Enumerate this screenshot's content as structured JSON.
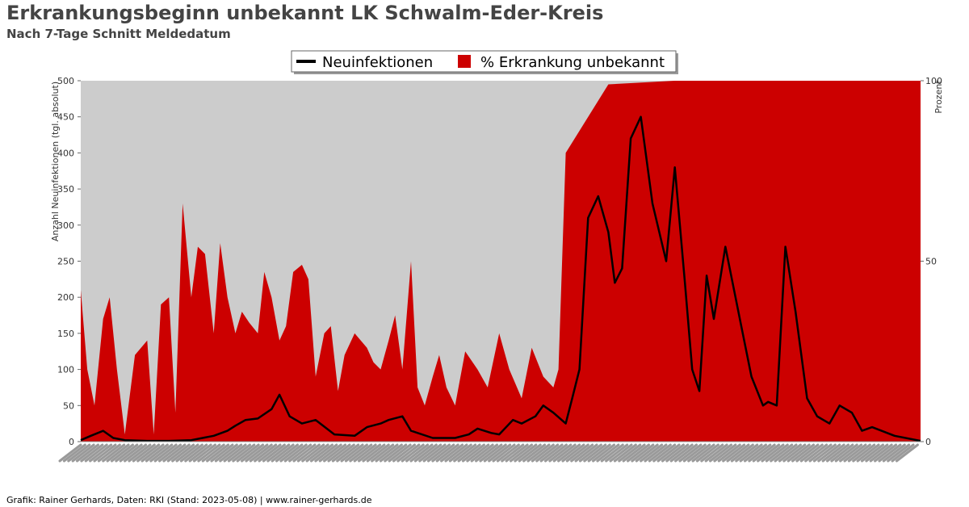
{
  "header": {
    "title": "Erkrankungsbeginn unbekannt LK Schwalm-Eder-Kreis",
    "subtitle": "Nach 7-Tage Schnitt Meldedatum"
  },
  "footer": {
    "credit": "Grafik: Rainer Gerhards, Daten: RKI (Stand: 2023-05-08) | www.rainer-gerhards.de"
  },
  "colors": {
    "plot_background": "#cccccc",
    "area": "#cc0000",
    "line": "#000000"
  },
  "chart_data": {
    "type": "line",
    "x_range": [
      "2020-03-01",
      "2023-05-07"
    ],
    "legend": {
      "placement": "top-center",
      "items": [
        "Neuinfektionen",
        "% Erkrankung unbekannt"
      ]
    },
    "left_axis": {
      "label": "Anzahl Neuinfektionen (tgl. absolut)",
      "ylim": [
        0,
        500
      ],
      "ticks": [
        0,
        50,
        100,
        150,
        200,
        250,
        300,
        350,
        400,
        450,
        500
      ]
    },
    "right_axis": {
      "label": "Prozent",
      "ylim": [
        0,
        100
      ],
      "ticks": [
        0,
        50,
        100
      ]
    },
    "series": [
      {
        "name": "Neuinfektionen",
        "kind": "line",
        "axis": "left",
        "x": [
          "2020-03-01",
          "2020-03-15",
          "2020-04-01",
          "2020-04-15",
          "2020-05-01",
          "2020-06-01",
          "2020-07-01",
          "2020-08-01",
          "2020-09-01",
          "2020-09-20",
          "2020-10-01",
          "2020-10-15",
          "2020-11-01",
          "2020-11-20",
          "2020-12-01",
          "2020-12-15",
          "2021-01-01",
          "2021-01-20",
          "2021-02-15",
          "2021-03-15",
          "2021-04-01",
          "2021-04-20",
          "2021-05-01",
          "2021-05-20",
          "2021-06-01",
          "2021-07-01",
          "2021-08-01",
          "2021-08-20",
          "2021-09-01",
          "2021-09-20",
          "2021-10-01",
          "2021-10-20",
          "2021-11-01",
          "2021-11-20",
          "2021-12-01",
          "2021-12-15",
          "2022-01-01",
          "2022-01-10",
          "2022-01-20",
          "2022-02-01",
          "2022-02-15",
          "2022-03-01",
          "2022-03-10",
          "2022-03-20",
          "2022-04-01",
          "2022-04-15",
          "2022-05-01",
          "2022-05-20",
          "2022-06-01",
          "2022-06-15",
          "2022-06-25",
          "2022-07-05",
          "2022-07-15",
          "2022-07-25",
          "2022-08-10",
          "2022-09-01",
          "2022-09-15",
          "2022-10-01",
          "2022-10-08",
          "2022-10-20",
          "2022-11-01",
          "2022-11-15",
          "2022-12-01",
          "2022-12-15",
          "2023-01-01",
          "2023-01-15",
          "2023-02-01",
          "2023-02-15",
          "2023-03-01",
          "2023-04-01",
          "2023-05-07"
        ],
        "values": [
          2,
          8,
          15,
          5,
          2,
          1,
          1,
          2,
          8,
          15,
          22,
          30,
          32,
          45,
          65,
          35,
          25,
          30,
          10,
          8,
          20,
          25,
          30,
          35,
          15,
          5,
          5,
          10,
          18,
          12,
          10,
          30,
          25,
          35,
          50,
          40,
          25,
          60,
          100,
          310,
          340,
          290,
          220,
          240,
          420,
          450,
          330,
          250,
          380,
          220,
          100,
          70,
          230,
          170,
          270,
          160,
          90,
          50,
          55,
          50,
          270,
          180,
          60,
          35,
          25,
          50,
          40,
          15,
          20,
          8,
          1
        ]
      },
      {
        "name": "% Erkrankung unbekannt",
        "kind": "area",
        "axis": "right",
        "x": [
          "2020-03-01",
          "2020-03-10",
          "2020-03-20",
          "2020-04-01",
          "2020-04-10",
          "2020-04-20",
          "2020-05-01",
          "2020-05-15",
          "2020-06-01",
          "2020-06-10",
          "2020-06-20",
          "2020-07-01",
          "2020-07-10",
          "2020-07-20",
          "2020-08-01",
          "2020-08-10",
          "2020-08-20",
          "2020-09-01",
          "2020-09-10",
          "2020-09-20",
          "2020-10-01",
          "2020-10-10",
          "2020-10-20",
          "2020-11-01",
          "2020-11-10",
          "2020-11-20",
          "2020-12-01",
          "2020-12-10",
          "2020-12-20",
          "2021-01-01",
          "2021-01-10",
          "2021-01-20",
          "2021-02-01",
          "2021-02-10",
          "2021-02-20",
          "2021-03-01",
          "2021-03-15",
          "2021-04-01",
          "2021-04-10",
          "2021-04-20",
          "2021-05-01",
          "2021-05-10",
          "2021-05-20",
          "2021-06-01",
          "2021-06-10",
          "2021-06-20",
          "2021-07-01",
          "2021-07-10",
          "2021-07-20",
          "2021-08-01",
          "2021-08-15",
          "2021-09-01",
          "2021-09-15",
          "2021-10-01",
          "2021-10-15",
          "2021-11-01",
          "2021-11-15",
          "2021-12-01",
          "2021-12-15",
          "2021-12-22",
          "2022-01-01",
          "2022-03-01",
          "2022-06-01",
          "2022-09-01",
          "2022-12-01",
          "2023-03-01",
          "2023-05-07"
        ],
        "values": [
          42,
          20,
          10,
          34,
          40,
          20,
          2,
          24,
          28,
          2,
          38,
          40,
          8,
          66,
          40,
          54,
          52,
          30,
          55,
          40,
          30,
          36,
          33,
          30,
          47,
          40,
          28,
          32,
          47,
          49,
          45,
          18,
          30,
          32,
          14,
          24,
          30,
          26,
          22,
          20,
          28,
          35,
          20,
          50,
          15,
          10,
          18,
          24,
          15,
          10,
          25,
          20,
          15,
          30,
          20,
          12,
          26,
          18,
          15,
          20,
          80,
          99,
          100,
          100,
          100,
          100,
          100
        ]
      }
    ]
  }
}
